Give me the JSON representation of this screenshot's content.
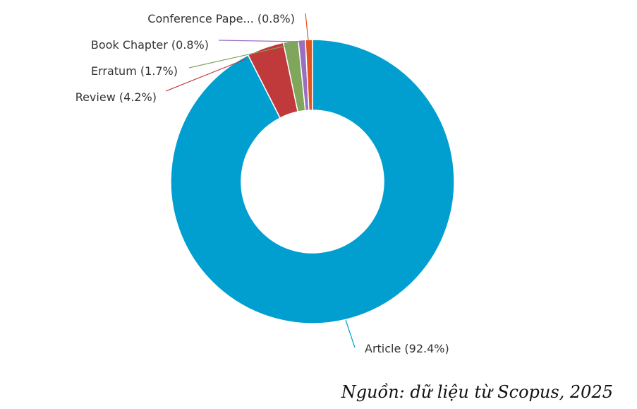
{
  "chart_data": {
    "type": "pie",
    "variant": "donut",
    "title": "",
    "slices": [
      {
        "label": "Article (92.4%)",
        "value": 92.4,
        "color": "#009fd0"
      },
      {
        "label": "Review (4.2%)",
        "value": 4.2,
        "color": "#c0393b"
      },
      {
        "label": "Erratum (1.7%)",
        "value": 1.7,
        "color": "#7fa65a"
      },
      {
        "label": "Book Chapter (0.8%)",
        "value": 0.8,
        "color": "#9b6fc0"
      },
      {
        "label": "Conference Pape... (0.8%)",
        "value": 0.8,
        "color": "#e0541f"
      }
    ]
  },
  "source_note": "Nguồn: dữ liệu từ Scopus, 2025"
}
